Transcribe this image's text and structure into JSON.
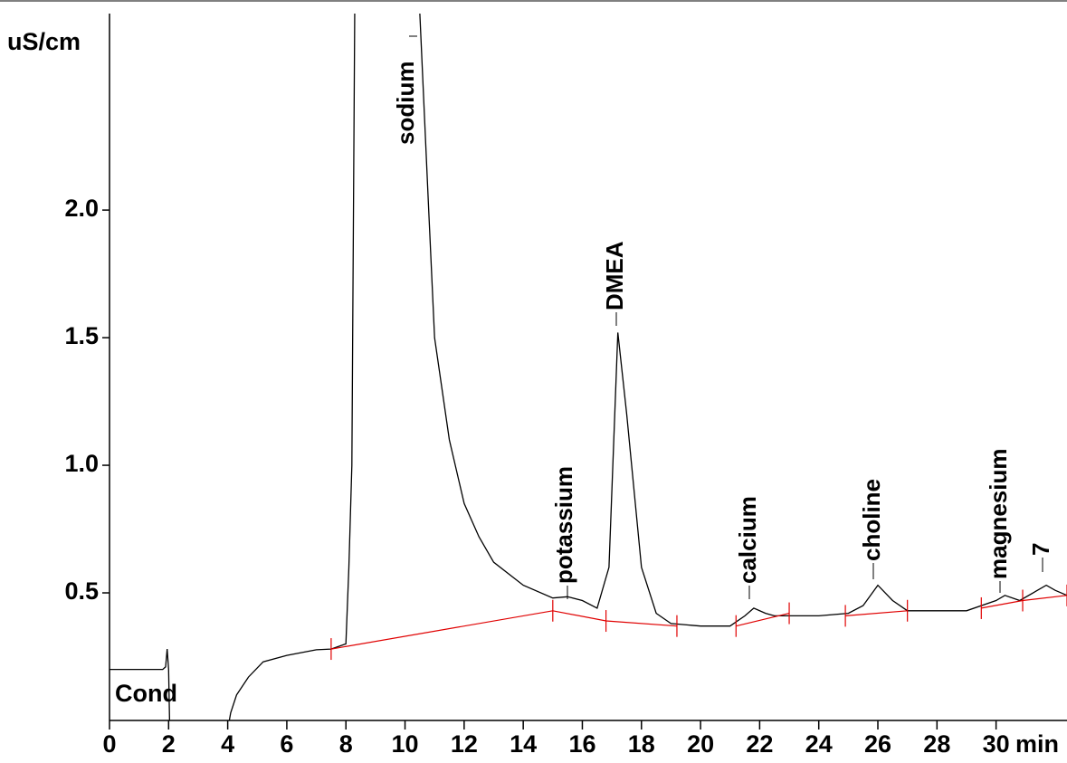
{
  "chart_data": {
    "type": "line",
    "y_label": "uS/cm",
    "x_label": "min",
    "channel_label": "Cond",
    "xlim": [
      0,
      32.4
    ],
    "ylim": [
      0,
      2.77
    ],
    "xticks": [
      0,
      2,
      4,
      6,
      8,
      10,
      12,
      14,
      16,
      18,
      20,
      22,
      24,
      26,
      28,
      30
    ],
    "yticks": [
      0.5,
      {
        "value": 1,
        "label": "1.0"
      },
      1.5,
      {
        "value": 2,
        "label": "2.0"
      }
    ],
    "series": [
      {
        "name": "Cond",
        "color": "#000000",
        "x": [
          0,
          1.8,
          1.9,
          1.95,
          2.0,
          2.05,
          3.9,
          4.1,
          4.3,
          4.7,
          5.2,
          6,
          7,
          7.5,
          8,
          8.1,
          8.2,
          8.3,
          9.3,
          10.5,
          10.8,
          11,
          11.5,
          12,
          12.5,
          13,
          14,
          15,
          15.5,
          16,
          16.5,
          16.9,
          17.2,
          17.5,
          18,
          18.5,
          19,
          20,
          21,
          21.5,
          21.8,
          22.2,
          22.5,
          23.5,
          24,
          25,
          25.5,
          26,
          26.5,
          27,
          28,
          29,
          30,
          30.3,
          30.8,
          31.7,
          32,
          32.4
        ],
        "values": [
          0.2,
          0.2,
          0.21,
          0.28,
          0.2,
          -0.1,
          -0.1,
          0.03,
          0.1,
          0.17,
          0.23,
          0.255,
          0.277,
          0.28,
          0.3,
          0.6,
          1.0,
          2.8,
          4.0,
          2.77,
          2.0,
          1.5,
          1.1,
          0.85,
          0.72,
          0.62,
          0.53,
          0.48,
          0.485,
          0.47,
          0.44,
          0.6,
          1.52,
          1.2,
          0.6,
          0.42,
          0.38,
          0.37,
          0.37,
          0.41,
          0.44,
          0.42,
          0.41,
          0.41,
          0.41,
          0.42,
          0.45,
          0.53,
          0.47,
          0.43,
          0.43,
          0.43,
          0.47,
          0.49,
          0.47,
          0.53,
          0.51,
          0.49
        ]
      },
      {
        "name": "Baseline",
        "color": "#e00000",
        "x": [
          7.5,
          15,
          16.8,
          19.2,
          null,
          21.2,
          23,
          null,
          24.9,
          27,
          null,
          29.5,
          30.9,
          32.4
        ],
        "values": [
          0.28,
          0.43,
          0.39,
          0.37,
          null,
          0.37,
          0.42,
          null,
          0.41,
          0.43,
          null,
          0.44,
          0.47,
          0.49
        ]
      }
    ],
    "annotations": [
      "sodium",
      "potassium",
      "DMEA",
      "calcium",
      "choline",
      "magnesium",
      "7"
    ]
  }
}
